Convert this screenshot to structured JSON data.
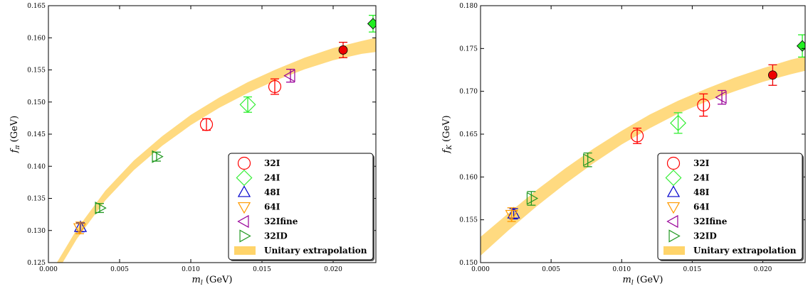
{
  "chart_data": [
    {
      "type": "scatter",
      "xlabel_sym": "m",
      "xlabel_sub": "l",
      "xlabel_unit": " (GeV)",
      "ylabel_sym": "f",
      "ylabel_sub": "π",
      "ylabel_unit": " (GeV)",
      "xlim": [
        0.0,
        0.023
      ],
      "ylim": [
        0.125,
        0.165
      ],
      "xticks": [
        "0.000",
        "0.005",
        "0.010",
        "0.015",
        "0.020"
      ],
      "yticks": [
        "0.125",
        "0.130",
        "0.135",
        "0.140",
        "0.145",
        "0.150",
        "0.155",
        "0.160",
        "0.165"
      ],
      "band": {
        "name": "Unitary extrapolation",
        "x": [
          0.0,
          0.002,
          0.004,
          0.006,
          0.008,
          0.01,
          0.012,
          0.014,
          0.016,
          0.018,
          0.02,
          0.022,
          0.023
        ],
        "lo": [
          0.1213,
          0.1287,
          0.1347,
          0.1394,
          0.1432,
          0.1464,
          0.1491,
          0.1514,
          0.1534,
          0.1551,
          0.1565,
          0.1575,
          0.1578
        ],
        "hi": [
          0.1228,
          0.1302,
          0.1362,
          0.1409,
          0.1447,
          0.148,
          0.1507,
          0.1531,
          0.1551,
          0.1569,
          0.1584,
          0.1595,
          0.16
        ]
      },
      "series": [
        {
          "name": "32I",
          "marker": "circle",
          "color": "#ff0000",
          "points": [
            {
              "x": 0.0111,
              "y": 0.1465,
              "err": 0.0009
            },
            {
              "x": 0.0159,
              "y": 0.1524,
              "err": 0.0012
            }
          ]
        },
        {
          "name": "24I",
          "marker": "diamond",
          "color": "#33ee33",
          "points": [
            {
              "x": 0.014,
              "y": 0.1496,
              "err": 0.0012
            }
          ]
        },
        {
          "name": "48I",
          "marker": "triangle-up",
          "color": "#0000cc",
          "points": [
            {
              "x": 0.00225,
              "y": 0.1305,
              "err": 0.0007
            }
          ]
        },
        {
          "name": "64I",
          "marker": "triangle-down",
          "color": "#ff9900",
          "points": [
            {
              "x": 0.0022,
              "y": 0.1304,
              "err": 0.0009
            }
          ]
        },
        {
          "name": "32Ifine",
          "marker": "triangle-left",
          "color": "#990099",
          "points": [
            {
              "x": 0.017,
              "y": 0.1541,
              "err": 0.001
            }
          ]
        },
        {
          "name": "32ID",
          "marker": "triangle-right",
          "color": "#229922",
          "points": [
            {
              "x": 0.0036,
              "y": 0.1335,
              "err": 0.0007
            },
            {
              "x": 0.0076,
              "y": 0.1415,
              "err": 0.0007
            }
          ]
        }
      ],
      "extra_points": [
        {
          "marker": "circle-filled",
          "color": "#ee0000",
          "x": 0.0207,
          "y": 0.1581,
          "err": 0.0012
        },
        {
          "marker": "diamond-filled",
          "color": "#22ee22",
          "x": 0.0228,
          "y": 0.1622,
          "err": 0.0013
        }
      ],
      "legend_position": "bottom-right"
    },
    {
      "type": "scatter",
      "xlabel_sym": "m",
      "xlabel_sub": "l",
      "xlabel_unit": " (GeV)",
      "ylabel_sym": "f",
      "ylabel_sub": "K",
      "ylabel_unit": " (GeV)",
      "xlim": [
        0.0,
        0.023
      ],
      "ylim": [
        0.15,
        0.18
      ],
      "xticks": [
        "0.000",
        "0.005",
        "0.010",
        "0.015",
        "0.020"
      ],
      "yticks": [
        "0.150",
        "0.155",
        "0.160",
        "0.165",
        "0.170",
        "0.175",
        "0.180"
      ],
      "band": {
        "name": "Unitary extrapolation",
        "x": [
          0.0,
          0.002,
          0.004,
          0.006,
          0.008,
          0.01,
          0.012,
          0.014,
          0.016,
          0.018,
          0.02,
          0.022,
          0.023
        ],
        "lo": [
          0.1508,
          0.1538,
          0.1566,
          0.1592,
          0.1616,
          0.1638,
          0.1657,
          0.1674,
          0.1688,
          0.17,
          0.1711,
          0.172,
          0.1724
        ],
        "hi": [
          0.153,
          0.1558,
          0.1585,
          0.161,
          0.1633,
          0.1654,
          0.1673,
          0.1689,
          0.1703,
          0.1716,
          0.1727,
          0.1737,
          0.1741
        ]
      },
      "series": [
        {
          "name": "32I",
          "marker": "circle",
          "color": "#ff0000",
          "points": [
            {
              "x": 0.0111,
              "y": 0.1648,
              "err": 0.0009
            },
            {
              "x": 0.0158,
              "y": 0.1684,
              "err": 0.0013
            }
          ]
        },
        {
          "name": "24I",
          "marker": "diamond",
          "color": "#33ee33",
          "points": [
            {
              "x": 0.014,
              "y": 0.1663,
              "err": 0.0012
            }
          ]
        },
        {
          "name": "48I",
          "marker": "triangle-up",
          "color": "#0000cc",
          "points": [
            {
              "x": 0.00235,
              "y": 0.1557,
              "err": 0.0006
            }
          ]
        },
        {
          "name": "64I",
          "marker": "triangle-down",
          "color": "#ff9900",
          "points": [
            {
              "x": 0.0022,
              "y": 0.1556,
              "err": 0.0008
            }
          ]
        },
        {
          "name": "32Ifine",
          "marker": "triangle-left",
          "color": "#990099",
          "points": [
            {
              "x": 0.0171,
              "y": 0.1693,
              "err": 0.0008
            }
          ]
        },
        {
          "name": "32ID",
          "marker": "triangle-right",
          "color": "#229922",
          "points": [
            {
              "x": 0.0036,
              "y": 0.1575,
              "err": 0.0008
            },
            {
              "x": 0.0076,
              "y": 0.162,
              "err": 0.0008
            }
          ]
        }
      ],
      "extra_points": [
        {
          "marker": "circle-filled",
          "color": "#ee0000",
          "x": 0.0207,
          "y": 0.1719,
          "err": 0.0012
        },
        {
          "marker": "diamond-filled",
          "color": "#22ee22",
          "x": 0.0228,
          "y": 0.1753,
          "err": 0.0013
        }
      ],
      "legend_position": "bottom-right"
    }
  ]
}
